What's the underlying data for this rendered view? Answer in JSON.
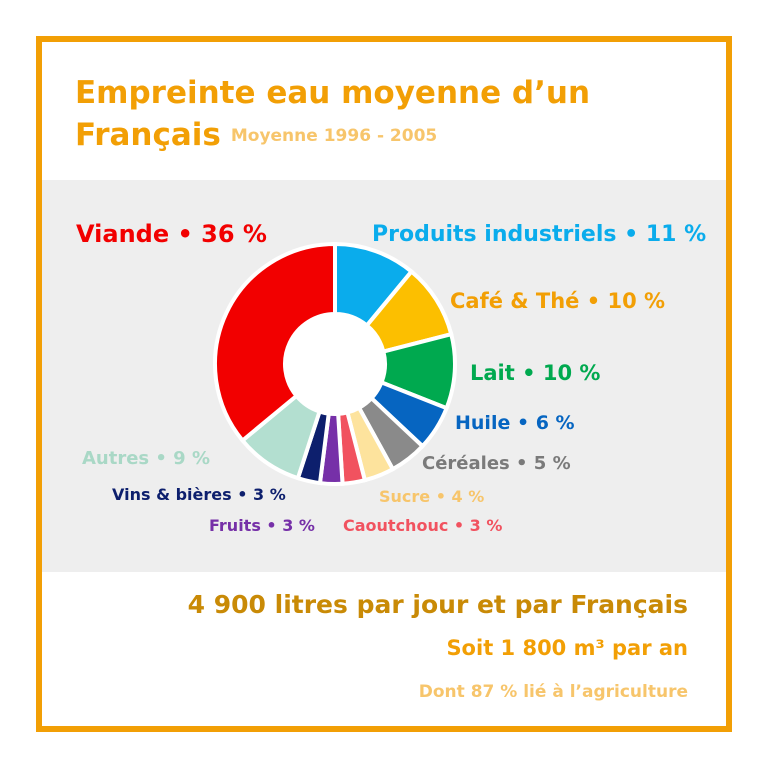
{
  "header": {
    "title": "Empreinte eau moyenne d’un Français",
    "subtitle": "Moyenne 1996 - 2005"
  },
  "chart_data": {
    "type": "pie",
    "donut": true,
    "title": "Empreinte eau moyenne d’un Français",
    "subtitle": "Moyenne 1996 - 2005",
    "unit": "%",
    "slices": [
      {
        "label": "Produits industriels • 11 %",
        "value": 11,
        "color": "#0aacec"
      },
      {
        "label": "Café & Thé • 10 %",
        "value": 10,
        "color": "#fcbf00"
      },
      {
        "label": "Lait • 10 %",
        "value": 10,
        "color": "#00a94f"
      },
      {
        "label": "Huile • 6 %",
        "value": 6,
        "color": "#0665c1"
      },
      {
        "label": "Céréales • 5 %",
        "value": 5,
        "color": "#8a8a8a"
      },
      {
        "label": "Sucre • 4 %",
        "value": 4,
        "color": "#fde39d"
      },
      {
        "label": "Caoutchouc • 3 %",
        "value": 3,
        "color": "#f1525f"
      },
      {
        "label": "Fruits • 3 %",
        "value": 3,
        "color": "#7630a8"
      },
      {
        "label": "Vins & bières • 3 %",
        "value": 3,
        "color": "#0d1f6d"
      },
      {
        "label": "Autres • 9 %",
        "value": 9,
        "color": "#b3dfd0"
      },
      {
        "label": "Viande • 36 %",
        "value": 36,
        "color": "#f20000"
      }
    ]
  },
  "footer": {
    "line1": "4 900 litres par jour et par Français",
    "line2": "Soit 1 800 m³ par an",
    "line3": "Dont 87 % lié à l’agriculture"
  },
  "colors": {
    "frame": "#f29f05",
    "band": "#eeeeee"
  }
}
